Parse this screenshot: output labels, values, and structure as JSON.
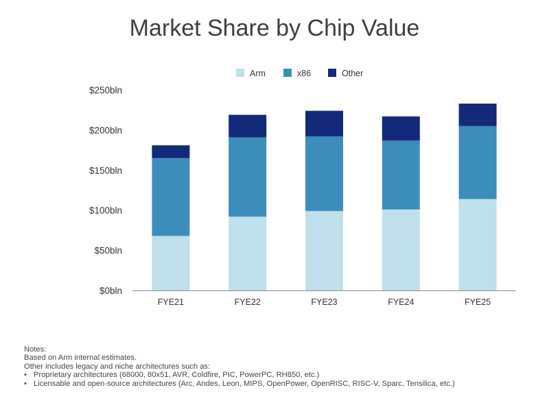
{
  "chart_data": {
    "type": "bar",
    "stacked": true,
    "title": "Market Share by Chip Value",
    "categories": [
      "FYE21",
      "FYE22",
      "FYE23",
      "FYE24",
      "FYE25"
    ],
    "series": [
      {
        "name": "Arm",
        "color": "#bfe0ea",
        "values": [
          68,
          92,
          99,
          101,
          114
        ]
      },
      {
        "name": "x86",
        "color": "#3c8dba",
        "values": [
          97,
          99,
          93,
          86,
          91
        ]
      },
      {
        "name": "Other",
        "color": "#13297a",
        "values": [
          16,
          28,
          32,
          30,
          28
        ]
      }
    ],
    "y_ticks": [
      {
        "value": 0,
        "label": "$0bln"
      },
      {
        "value": 50,
        "label": "$50bln"
      },
      {
        "value": 100,
        "label": "$100bln"
      },
      {
        "value": 150,
        "label": "$150bln"
      },
      {
        "value": 200,
        "label": "$200bln"
      },
      {
        "value": 250,
        "label": "$250bln"
      }
    ],
    "ylim": [
      0,
      250
    ],
    "xlabel": "",
    "ylabel": "",
    "legend_position": "top-center",
    "grid": false
  },
  "notes": {
    "heading": "Notes:",
    "line1": "Based on Arm internal estimates.",
    "line2": "Other includes legacy and niche architectures such as:",
    "bullet_char": "•",
    "bullet1": "Proprietary architectures (68000, 80x51, AVR, Coldfire, PIC, PowerPC, RH850, etc.)",
    "bullet2": "Licensable and open-source architectures (Arc, Andes, Leon, MIPS, OpenPower, OpenRISC, RISC-V, Sparc, Tensilica, etc.)"
  }
}
